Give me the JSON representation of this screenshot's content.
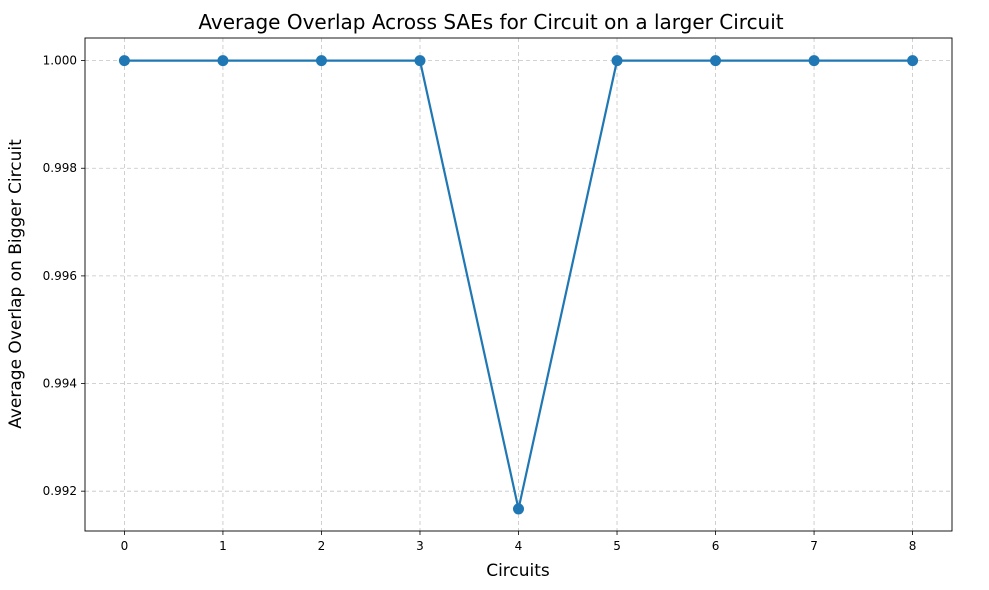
{
  "chart_data": {
    "type": "line",
    "title": "Average Overlap Across SAEs for Circuit on a larger Circuit",
    "xlabel": "Circuits",
    "ylabel": "Average Overlap on Bigger Circuit",
    "x": [
      0,
      1,
      2,
      3,
      4,
      5,
      6,
      7,
      8
    ],
    "series": [
      {
        "values": [
          1.0,
          1.0,
          1.0,
          1.0,
          0.99167,
          1.0,
          1.0,
          1.0,
          1.0
        ],
        "color": "#1f77b4",
        "marker": "circle"
      }
    ],
    "xlim": [
      -0.4,
      8.4
    ],
    "ylim": [
      0.99126,
      1.00042
    ],
    "xticks": [
      0,
      1,
      2,
      3,
      4,
      5,
      6,
      7,
      8
    ],
    "xtick_labels": [
      "0",
      "1",
      "2",
      "3",
      "4",
      "5",
      "6",
      "7",
      "8"
    ],
    "yticks": [
      0.992,
      0.994,
      0.996,
      0.998,
      1.0
    ],
    "ytick_labels": [
      "0.992",
      "0.994",
      "0.996",
      "0.998",
      "1.000"
    ],
    "grid": true
  }
}
